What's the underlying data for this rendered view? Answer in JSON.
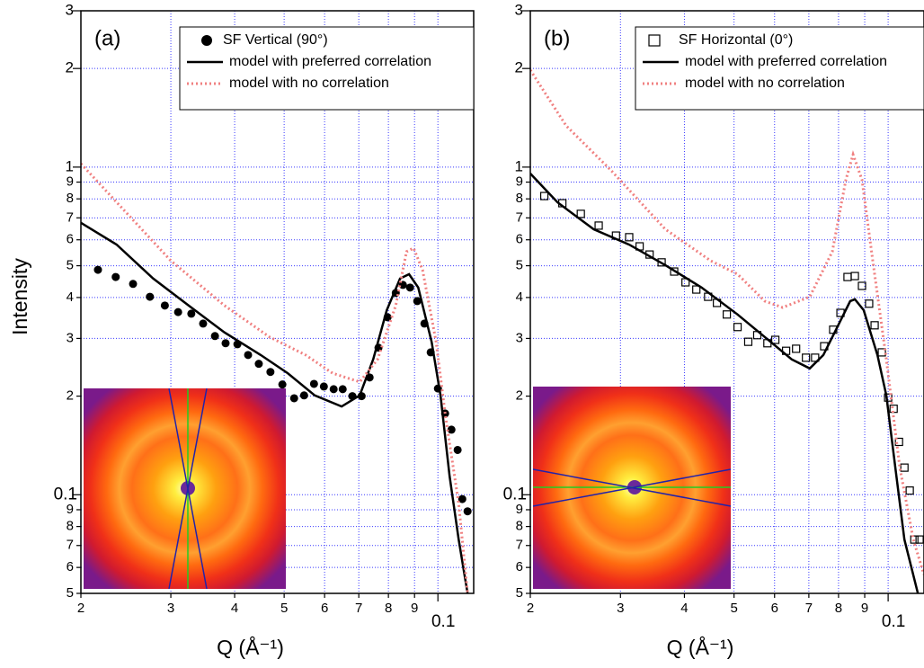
{
  "chart_data": [
    {
      "type": "line",
      "panel_label": "(a)",
      "y_label": "Intensity",
      "x_label": "Q (Å⁻¹)",
      "log_x": true,
      "log_y": true,
      "grid": true,
      "legend": "upper right",
      "xlim": [
        0.02,
        0.1175
      ],
      "ylim": [
        0.05,
        3
      ],
      "xticks": [
        {
          "value": 0.02,
          "label": "2"
        },
        {
          "value": 0.03,
          "label": "3"
        },
        {
          "value": 0.04,
          "label": "4"
        },
        {
          "value": 0.05,
          "label": "5"
        },
        {
          "value": 0.06,
          "label": "6"
        },
        {
          "value": 0.07,
          "label": "7"
        },
        {
          "value": 0.08,
          "label": "8"
        },
        {
          "value": 0.09,
          "label": "9"
        },
        0.1
      ],
      "yticks": [
        {
          "value": 0.05,
          "label": "5"
        },
        {
          "value": 0.06,
          "label": "6"
        },
        {
          "value": 0.07,
          "label": "7"
        },
        {
          "value": 0.08,
          "label": "8"
        },
        {
          "value": 0.09,
          "label": "9"
        },
        0.1,
        {
          "value": 0.2,
          "label": "2"
        },
        {
          "value": 0.3,
          "label": "3"
        },
        {
          "value": 0.4,
          "label": "4"
        },
        {
          "value": 0.5,
          "label": "5"
        },
        {
          "value": 0.6,
          "label": "6"
        },
        {
          "value": 0.7,
          "label": "7"
        },
        {
          "value": 0.8,
          "label": "8"
        },
        {
          "value": 0.9,
          "label": "9"
        },
        1,
        2,
        3
      ],
      "series": [
        {
          "name": "SF Vertical (90°)",
          "color": "#000000",
          "marker": "circle",
          "x": [
            0.0216,
            0.0234,
            0.0253,
            0.0273,
            0.0292,
            0.031,
            0.0329,
            0.0347,
            0.0366,
            0.0384,
            0.0405,
            0.0425,
            0.0446,
            0.047,
            0.0496,
            0.0523,
            0.0547,
            0.0572,
            0.0598,
            0.0625,
            0.0651,
            0.068,
            0.0709,
            0.0735,
            0.0765,
            0.0797,
            0.0827,
            0.0854,
            0.0882,
            0.0911,
            0.0941,
            0.0968,
            0.1,
            0.1033,
            0.1063,
            0.1093,
            0.1116,
            0.1143
          ],
          "values": [
            0.486,
            0.462,
            0.44,
            0.402,
            0.378,
            0.361,
            0.357,
            0.333,
            0.305,
            0.29,
            0.288,
            0.267,
            0.251,
            0.237,
            0.217,
            0.197,
            0.201,
            0.218,
            0.214,
            0.21,
            0.21,
            0.2,
            0.2,
            0.228,
            0.281,
            0.348,
            0.413,
            0.437,
            0.429,
            0.39,
            0.333,
            0.272,
            0.211,
            0.177,
            0.158,
            0.137,
            0.097,
            0.089
          ]
        },
        {
          "name": "model with preferred correlation",
          "color": "#000000",
          "dash": "solid",
          "x": [
            0.02,
            0.0235,
            0.0277,
            0.0325,
            0.0382,
            0.045,
            0.0508,
            0.0574,
            0.0648,
            0.0703,
            0.0747,
            0.0794,
            0.0843,
            0.0878,
            0.0915,
            0.0972,
            0.1012,
            0.1054,
            0.1098,
            0.1143
          ],
          "values": [
            0.676,
            0.58,
            0.457,
            0.378,
            0.313,
            0.267,
            0.235,
            0.201,
            0.186,
            0.201,
            0.259,
            0.366,
            0.457,
            0.471,
            0.429,
            0.293,
            0.201,
            0.114,
            0.073,
            0.05
          ]
        },
        {
          "name": "model with no correlation",
          "color": "#f08080",
          "dash": "dotted",
          "x": [
            0.02,
            0.0235,
            0.03,
            0.0382,
            0.0468,
            0.0551,
            0.0622,
            0.0703,
            0.0762,
            0.0827,
            0.0868,
            0.0896,
            0.0933,
            0.0992,
            0.1033,
            0.1098,
            0.1143
          ],
          "values": [
            1.025,
            0.781,
            0.518,
            0.378,
            0.303,
            0.267,
            0.235,
            0.221,
            0.259,
            0.378,
            0.552,
            0.566,
            0.486,
            0.293,
            0.177,
            0.094,
            0.05
          ]
        }
      ]
    },
    {
      "type": "line",
      "panel_label": "(b)",
      "x_label": "Q (Å⁻¹)",
      "log_x": true,
      "log_y": true,
      "grid": true,
      "legend": "upper right",
      "xlim": [
        0.02,
        0.1175
      ],
      "ylim": [
        0.05,
        3
      ],
      "xticks": [
        {
          "value": 0.02,
          "label": "2"
        },
        {
          "value": 0.03,
          "label": "3"
        },
        {
          "value": 0.04,
          "label": "4"
        },
        {
          "value": 0.05,
          "label": "5"
        },
        {
          "value": 0.06,
          "label": "6"
        },
        {
          "value": 0.07,
          "label": "7"
        },
        {
          "value": 0.08,
          "label": "8"
        },
        {
          "value": 0.09,
          "label": "9"
        },
        0.1
      ],
      "yticks": [
        {
          "value": 0.05,
          "label": "5"
        },
        {
          "value": 0.06,
          "label": "6"
        },
        {
          "value": 0.07,
          "label": "7"
        },
        {
          "value": 0.08,
          "label": "8"
        },
        {
          "value": 0.09,
          "label": "9"
        },
        0.1,
        {
          "value": 0.2,
          "label": "2"
        },
        {
          "value": 0.3,
          "label": "3"
        },
        {
          "value": 0.4,
          "label": "4"
        },
        {
          "value": 0.5,
          "label": "5"
        },
        {
          "value": 0.6,
          "label": "6"
        },
        {
          "value": 0.7,
          "label": "7"
        },
        {
          "value": 0.8,
          "label": "8"
        },
        {
          "value": 0.9,
          "label": "9"
        },
        1,
        2,
        3
      ],
      "series": [
        {
          "name": "SF Horizontal (0°)",
          "color": "#000000",
          "marker": "square",
          "x": [
            0.0213,
            0.0231,
            0.0251,
            0.0272,
            0.0294,
            0.0312,
            0.0327,
            0.0342,
            0.0361,
            0.0382,
            0.0402,
            0.0422,
            0.0445,
            0.0463,
            0.0484,
            0.0508,
            0.0533,
            0.0555,
            0.0581,
            0.0602,
            0.0632,
            0.0661,
            0.0691,
            0.072,
            0.075,
            0.0781,
            0.0807,
            0.0833,
            0.0861,
            0.0889,
            0.0918,
            0.0941,
            0.0972,
            0.1,
            0.1025,
            0.105,
            0.1076,
            0.1102,
            0.1125,
            0.1152
          ],
          "values": [
            0.816,
            0.776,
            0.72,
            0.663,
            0.618,
            0.611,
            0.573,
            0.541,
            0.512,
            0.48,
            0.445,
            0.423,
            0.402,
            0.385,
            0.355,
            0.325,
            0.293,
            0.307,
            0.29,
            0.297,
            0.275,
            0.279,
            0.262,
            0.262,
            0.284,
            0.319,
            0.359,
            0.462,
            0.465,
            0.434,
            0.383,
            0.329,
            0.272,
            0.198,
            0.183,
            0.145,
            0.121,
            0.103,
            0.073,
            0.073
          ]
        },
        {
          "name": "model with preferred correlation",
          "color": "#000000",
          "dash": "solid",
          "x": [
            0.02,
            0.0226,
            0.0266,
            0.0312,
            0.0367,
            0.0432,
            0.0508,
            0.0574,
            0.0648,
            0.0703,
            0.0747,
            0.0794,
            0.0843,
            0.0861,
            0.0896,
            0.0953,
            0.0992,
            0.1033,
            0.1076,
            0.1143
          ],
          "values": [
            0.956,
            0.781,
            0.646,
            0.58,
            0.502,
            0.429,
            0.355,
            0.303,
            0.259,
            0.243,
            0.267,
            0.323,
            0.39,
            0.395,
            0.366,
            0.267,
            0.201,
            0.121,
            0.073,
            0.05
          ]
        },
        {
          "name": "model with no correlation",
          "color": "#f08080",
          "dash": "dotted",
          "x": [
            0.02,
            0.0235,
            0.0288,
            0.0367,
            0.045,
            0.0508,
            0.0574,
            0.0622,
            0.0703,
            0.0778,
            0.0827,
            0.0854,
            0.0889,
            0.0933,
            0.0992,
            0.1054,
            0.112,
            0.1175
          ],
          "values": [
            1.978,
            1.337,
            0.975,
            0.646,
            0.518,
            0.471,
            0.39,
            0.373,
            0.402,
            0.552,
            0.915,
            1.092,
            0.915,
            0.518,
            0.259,
            0.121,
            0.073,
            0.057
          ]
        }
      ]
    }
  ]
}
